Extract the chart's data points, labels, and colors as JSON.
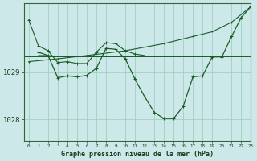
{
  "bg_color": "#cce8e8",
  "grid_color": "#99ccbb",
  "line_color": "#1a5c28",
  "ylabel_values": [
    1028,
    1029
  ],
  "xlabel_values": [
    0,
    1,
    2,
    3,
    4,
    5,
    6,
    7,
    8,
    9,
    10,
    11,
    12,
    13,
    14,
    15,
    16,
    17,
    18,
    19,
    20,
    21,
    22,
    23
  ],
  "xlabel": "Graphe pression niveau de la mer (hPa)",
  "xlim": [
    -0.5,
    23
  ],
  "ylim": [
    1027.55,
    1030.45
  ],
  "line1_x": [
    0,
    1,
    2,
    3,
    4,
    5,
    6,
    7,
    8,
    9,
    10,
    11,
    12
  ],
  "line1_y": [
    1030.1,
    1029.55,
    1029.45,
    1029.2,
    1029.22,
    1029.18,
    1029.18,
    1029.42,
    1029.62,
    1029.6,
    1029.45,
    1029.38,
    1029.35
  ],
  "line2_x": [
    1,
    2,
    3,
    4,
    5,
    6,
    7,
    8,
    9,
    10,
    11,
    12,
    13,
    14,
    15,
    16,
    17,
    18,
    19,
    20,
    21,
    22,
    23
  ],
  "line2_y": [
    1029.42,
    1029.35,
    1028.88,
    1028.92,
    1028.9,
    1028.93,
    1029.08,
    1029.5,
    1029.48,
    1029.28,
    1028.85,
    1028.48,
    1028.15,
    1028.02,
    1028.02,
    1028.28,
    1028.9,
    1028.92,
    1029.32,
    1029.32,
    1029.75,
    1030.15,
    1030.38
  ],
  "line3_x": [
    1,
    2,
    3,
    4,
    5,
    6,
    7,
    8,
    9,
    10,
    11,
    12,
    13,
    14,
    15,
    16,
    17,
    18,
    19
  ],
  "line3_y": [
    1029.35,
    1029.35,
    1029.33,
    1029.33,
    1029.33,
    1029.33,
    1029.33,
    1029.33,
    1029.33,
    1029.33,
    1029.33,
    1029.33,
    1029.33,
    1029.33,
    1029.33,
    1029.33,
    1029.33,
    1029.33,
    1029.33
  ],
  "line_diag_x": [
    0,
    3,
    6,
    10,
    14,
    17,
    19,
    21,
    23
  ],
  "line_diag_y": [
    1029.22,
    1029.28,
    1029.35,
    1029.45,
    1029.6,
    1029.75,
    1029.85,
    1030.05,
    1030.38
  ],
  "hline_y": 1029.33
}
